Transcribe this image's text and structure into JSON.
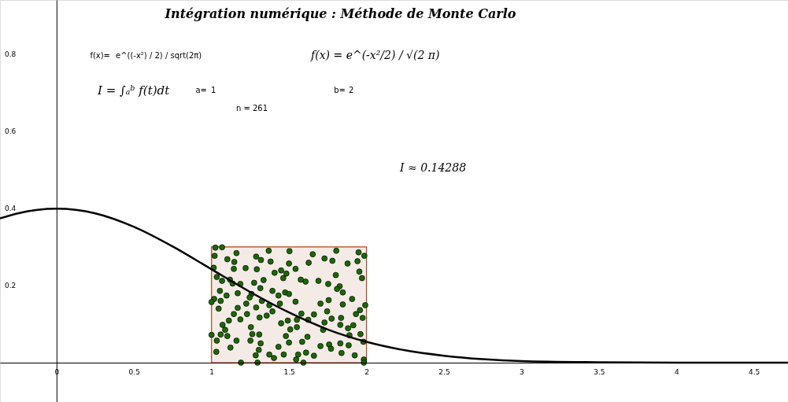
{
  "chart_data": {
    "type": "scatter",
    "title": "Intégration numérique : Méthode de Monte Carlo",
    "annotations": [
      "f(x)=",
      "e^((-x²) / 2) / sqrt(2π)",
      "f(x) = e^(-x²/2) / √(2 π)",
      "I = ∫ₐᵇ f(t)dt",
      "a=",
      "1",
      "b=",
      "2",
      "n = 261",
      "I ≈ 0.14288"
    ],
    "xlim": [
      -0.365,
      4.72
    ],
    "ylim": [
      -0.102,
      0.94
    ],
    "xticks": [
      0,
      0.5,
      1,
      1.5,
      2,
      2.5,
      3,
      3.5,
      4,
      4.5
    ],
    "yticks": [
      0.2,
      0.4,
      0.6,
      0.8
    ],
    "series": [
      {
        "type": "area",
        "color": "#f4ebe6",
        "x": [
          1,
          1,
          2,
          2
        ],
        "values": [
          0,
          0.3,
          0.3,
          0
        ]
      },
      {
        "type": "scatter",
        "color": "#1a6a00",
        "marker": "circle",
        "x": [
          1.025,
          1.068,
          1.161,
          1.288,
          1.369,
          1.503,
          1.653,
          1.805,
          1.949,
          1.986,
          1.02,
          1.102,
          1.147,
          1.319,
          1.381,
          1.5,
          1.627,
          1.729,
          1.78,
          1.878,
          1.942,
          1.014,
          1.144,
          1.22,
          1.292,
          1.449,
          1.542,
          1.407,
          1.483,
          1.802,
          1.954,
          1.034,
          1.119,
          1.463,
          1.971,
          1.068,
          1.136,
          1.186,
          1.275,
          1.336,
          1.576,
          1.607,
          1.69,
          1.753,
          1.827,
          1.315,
          1.393,
          1.81,
          1.847,
          1.054,
          1.097,
          1.169,
          1.258,
          1.017,
          1.0,
          1.059,
          1.246,
          1.432,
          1.475,
          1.5,
          1.325,
          1.373,
          1.441,
          1.542,
          1.703,
          1.756,
          1.847,
          1.907,
          1.992,
          1.958,
          1.046,
          1.169,
          1.224,
          1.288,
          1.393,
          1.58,
          1.661,
          1.746,
          1.932,
          1.144,
          1.229,
          1.356,
          1.112,
          1.186,
          1.31,
          1.775,
          1.836,
          1.975,
          1.492,
          1.551,
          1.624,
          1.729,
          1.831,
          1.915,
          1.071,
          1.449,
          1.254,
          1.508,
          1.551,
          1.72,
          1.881,
          1.308,
          1.088,
          1.0,
          1.059,
          1.102,
          1.263,
          1.48,
          1.619,
          1.89,
          1.961,
          1.034,
          1.161,
          1.251,
          1.317,
          1.5,
          1.585,
          1.831,
          1.885,
          1.98,
          1.703,
          1.759,
          1.122,
          1.432,
          1.031,
          1.305,
          1.771,
          1.839,
          1.61,
          1.373,
          1.466,
          1.559,
          1.661,
          1.924,
          1.285,
          1.403,
          1.546,
          1.983,
          1.19,
          1.297,
          1.593,
          1.983
        ],
        "values": [
          0.298,
          0.299,
          0.284,
          0.275,
          0.29,
          0.289,
          0.281,
          0.29,
          0.286,
          0.277,
          0.277,
          0.268,
          0.261,
          0.266,
          0.262,
          0.257,
          0.259,
          0.27,
          0.264,
          0.257,
          0.263,
          0.246,
          0.243,
          0.245,
          0.242,
          0.239,
          0.243,
          0.233,
          0.231,
          0.227,
          0.236,
          0.222,
          0.215,
          0.219,
          0.219,
          0.212,
          0.205,
          0.204,
          0.207,
          0.214,
          0.215,
          0.21,
          0.212,
          0.204,
          0.198,
          0.193,
          0.186,
          0.191,
          0.182,
          0.186,
          0.174,
          0.18,
          0.178,
          0.165,
          0.157,
          0.16,
          0.169,
          0.174,
          0.182,
          0.178,
          0.16,
          0.149,
          0.153,
          0.158,
          0.153,
          0.162,
          0.151,
          0.165,
          0.149,
          0.136,
          0.14,
          0.142,
          0.153,
          0.143,
          0.133,
          0.127,
          0.125,
          0.133,
          0.126,
          0.126,
          0.126,
          0.122,
          0.109,
          0.112,
          0.117,
          0.114,
          0.116,
          0.116,
          0.109,
          0.111,
          0.111,
          0.104,
          0.098,
          0.097,
          0.098,
          0.102,
          0.092,
          0.086,
          0.092,
          0.085,
          0.089,
          0.073,
          0.085,
          0.072,
          0.073,
          0.069,
          0.074,
          0.069,
          0.067,
          0.071,
          0.074,
          0.057,
          0.057,
          0.057,
          0.05,
          0.052,
          0.054,
          0.05,
          0.045,
          0.054,
          0.043,
          0.047,
          0.039,
          0.041,
          0.028,
          0.033,
          0.036,
          0.025,
          0.026,
          0.021,
          0.021,
          0.021,
          0.018,
          0.019,
          0.019,
          0.012,
          0.008,
          0.008,
          0,
          0,
          0,
          0
        ]
      },
      {
        "type": "line",
        "color": "#000000",
        "x": [
          -0.365,
          -0.25,
          0,
          0.25,
          0.5,
          0.75,
          1,
          1.25,
          1.5,
          1.75,
          2,
          2.25,
          2.5,
          2.75,
          3,
          3.5,
          4,
          4.72
        ],
        "values": [
          0.374,
          0.387,
          0.399,
          0.387,
          0.352,
          0.301,
          0.242,
          0.183,
          0.13,
          0.086,
          0.054,
          0.032,
          0.018,
          0.009,
          0.004,
          0.001,
          0,
          0
        ]
      }
    ]
  }
}
